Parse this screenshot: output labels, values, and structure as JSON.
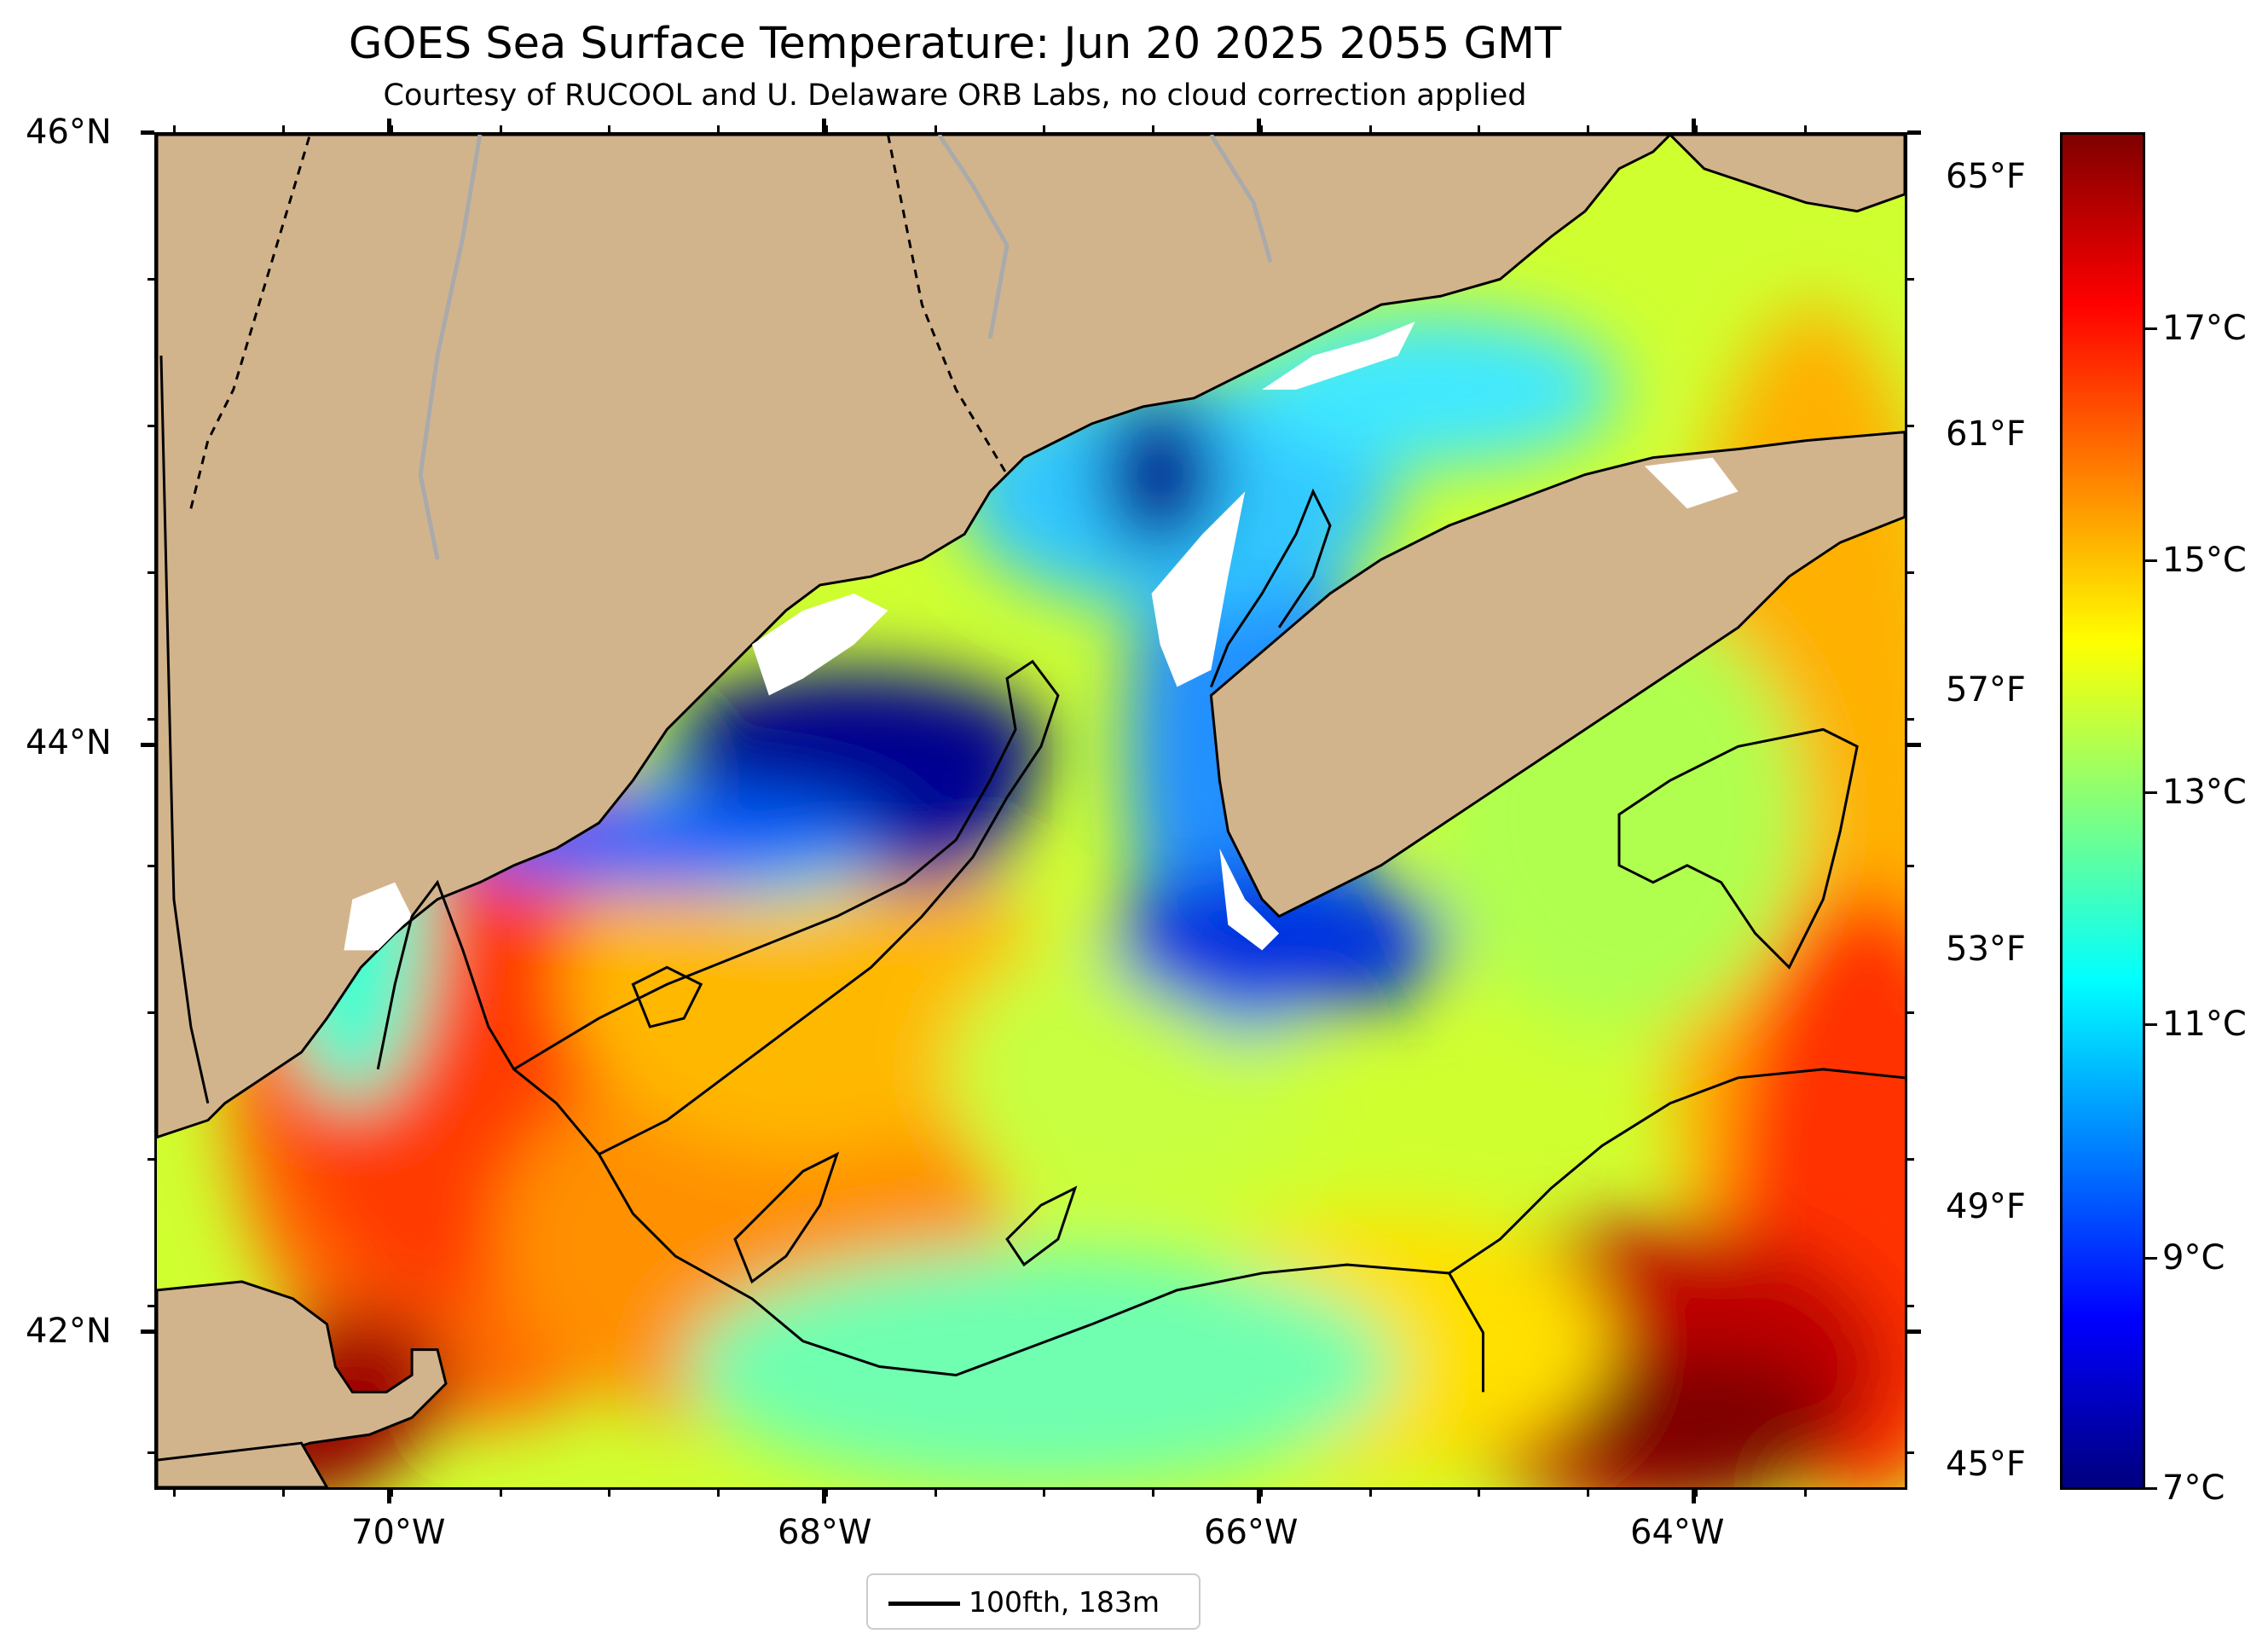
{
  "title": "GOES Sea Surface Temperature: Jun 20 2025 2055 GMT",
  "subtitle": "Courtesy of RUCOOL and U. Delaware ORB Labs, no cloud correction applied",
  "lat_labels": [
    "46°N",
    "44°N",
    "42°N"
  ],
  "lon_labels": [
    "70°W",
    "68°W",
    "66°W",
    "64°W"
  ],
  "fahrenheit_labels": [
    "65°F",
    "61°F",
    "57°F",
    "53°F",
    "49°F",
    "45°F"
  ],
  "colorbar_labels": [
    "17°C",
    "15°C",
    "13°C",
    "11°C",
    "9°C",
    "7°C"
  ],
  "legend": {
    "label": "100fth, 183m"
  },
  "colors": {
    "land": "#d2b48c",
    "river": "#aaaaaa",
    "colormap": [
      "#00007f",
      "#0000ff",
      "#007fff",
      "#00ffff",
      "#7fff7f",
      "#ffff00",
      "#ff7f00",
      "#ff0000",
      "#7f0000"
    ]
  },
  "colorbar_range_c": [
    6.8,
    18.6
  ]
}
